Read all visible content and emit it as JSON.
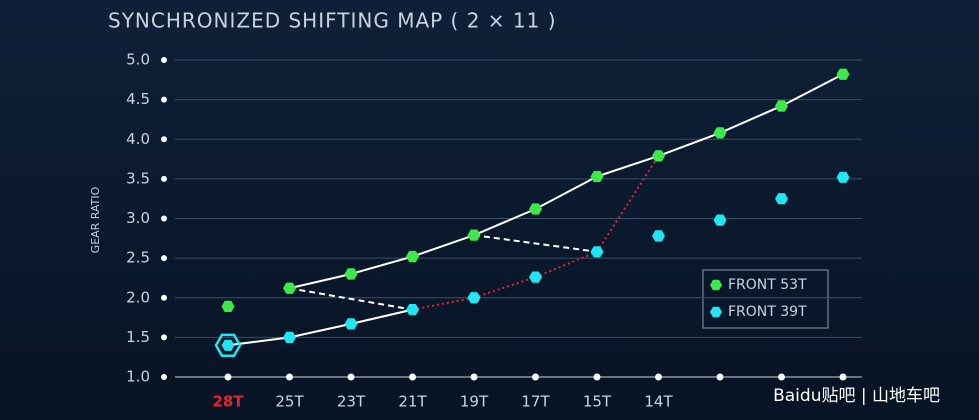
{
  "chart_data": {
    "type": "line",
    "title": "SYNCHRONIZED SHIFTING MAP ( 2 × 11 )",
    "y_label": "GEAR RATIO",
    "categories": [
      "28T",
      "25T",
      "23T",
      "21T",
      "19T",
      "17T",
      "15T",
      "14T",
      null,
      null,
      null
    ],
    "series": [
      {
        "name": "FRONT 53T",
        "color": "#3ee84a",
        "values": [
          1.89,
          2.12,
          2.3,
          2.52,
          2.79,
          3.12,
          3.53,
          3.79,
          4.08,
          4.42,
          4.82
        ]
      },
      {
        "name": "FRONT 39T",
        "color": "#1fe6f2",
        "values": [
          1.4,
          1.5,
          1.67,
          1.85,
          2.0,
          2.26,
          2.58,
          2.78,
          2.98,
          3.25,
          3.52
        ]
      }
    ],
    "ylim": [
      1,
      5
    ],
    "yticks": [
      {
        "value": 1,
        "label": "1.0"
      },
      {
        "value": 1.5,
        "label": "1.5"
      },
      {
        "value": 2,
        "label": "2.0"
      },
      {
        "value": 2.5,
        "label": "2.5"
      },
      {
        "value": 3,
        "label": "3.0"
      },
      {
        "value": 3.5,
        "label": "3.5"
      },
      {
        "value": 4,
        "label": "4.0"
      },
      {
        "value": 4.5,
        "label": "4.5"
      },
      {
        "value": 5,
        "label": "5.0"
      }
    ],
    "grid": true,
    "watermark": "Baidu贴吧 | 山地车吧"
  }
}
